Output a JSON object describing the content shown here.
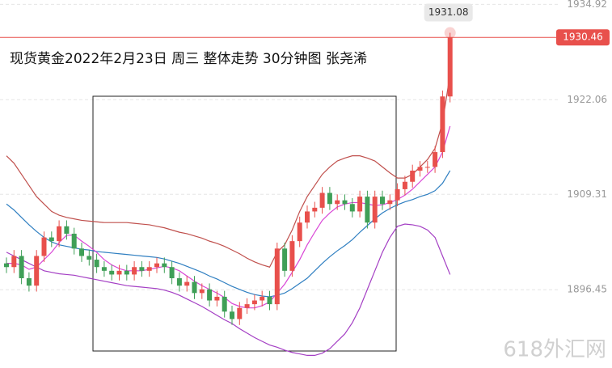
{
  "chart_data": {
    "type": "candlestick",
    "title": "现货黄金2022年2月23日  周三  整体走势  30分钟图  张尧浠",
    "watermark": "618外汇网",
    "ylim": [
      1885.9,
      1935.5
    ],
    "yticks": [
      1896.45,
      1909.31,
      1922.06,
      1934.92
    ],
    "grid": true,
    "up_color": "#e8504c",
    "down_color": "#3f9f57",
    "open": [
      1900,
      1899.5,
      1901,
      1898,
      1897,
      1901,
      1903.5,
      1903,
      1905,
      1904,
      1902,
      1901,
      1900.5,
      1899.5,
      1899,
      1898.5,
      1899,
      1898.5,
      1899.5,
      1899,
      1899.5,
      1900,
      1899.5,
      1898,
      1897,
      1897.5,
      1896,
      1896.5,
      1895,
      1895.5,
      1893.5,
      1892.5,
      1894,
      1894.5,
      1895,
      1895.5,
      1894.5,
      1902,
      1899,
      1903,
      1905.5,
      1907,
      1907.5,
      1909.5,
      1908,
      1908.5,
      1908,
      1907,
      1909,
      1905.5,
      1909,
      1908,
      1908.5,
      1910,
      1911,
      1912.5,
      1913,
      1913,
      1915,
      1922.5
    ],
    "high": [
      1900.8,
      1901.8,
      1901.8,
      1898.8,
      1901.8,
      1904.3,
      1904.3,
      1905.8,
      1905.8,
      1904.8,
      1902.8,
      1901.8,
      1901.3,
      1900.3,
      1899.8,
      1899.8,
      1899.8,
      1900.3,
      1900.3,
      1900.3,
      1900.8,
      1900.8,
      1900.3,
      1898.8,
      1898.3,
      1898.3,
      1897.3,
      1897.3,
      1896.3,
      1896.3,
      1894.3,
      1894.8,
      1895.3,
      1895.8,
      1896.3,
      1896.3,
      1902.8,
      1902.8,
      1903.8,
      1906.3,
      1907.8,
      1908.3,
      1910.3,
      1910.3,
      1909.3,
      1909.3,
      1908.8,
      1909.8,
      1909.8,
      1909.8,
      1909.8,
      1909.3,
      1910.8,
      1911.8,
      1913.3,
      1913.8,
      1913.8,
      1915.8,
      1923.3,
      1931.08
    ],
    "low": [
      1898.7,
      1898.7,
      1897.2,
      1896.2,
      1896.2,
      1900.2,
      1902.2,
      1902.2,
      1903.2,
      1901.2,
      1900.2,
      1899.7,
      1898.7,
      1898.2,
      1897.7,
      1897.7,
      1897.7,
      1897.7,
      1898.2,
      1898.2,
      1898.7,
      1898.7,
      1897.2,
      1896.2,
      1896.2,
      1895.2,
      1895.2,
      1894.2,
      1894.2,
      1892.7,
      1891.7,
      1891.7,
      1893.2,
      1893.7,
      1894.2,
      1893.7,
      1893.7,
      1898.2,
      1898.2,
      1902.2,
      1904.7,
      1906.2,
      1906.7,
      1907.2,
      1907.2,
      1907.2,
      1906.2,
      1906.2,
      1904.7,
      1904.7,
      1907.2,
      1907.2,
      1907.7,
      1909.2,
      1910.2,
      1911.7,
      1912.2,
      1912.2,
      1914.2,
      1921.7
    ],
    "close": [
      1899.5,
      1901,
      1898,
      1897,
      1901,
      1903.5,
      1903,
      1905,
      1904,
      1902,
      1901,
      1900.5,
      1899.5,
      1899,
      1898.5,
      1899,
      1898.5,
      1899.5,
      1899,
      1899.5,
      1900,
      1899.5,
      1898,
      1897,
      1897.5,
      1896,
      1896.5,
      1895,
      1895.5,
      1893.5,
      1892.5,
      1894,
      1894.5,
      1895,
      1895.5,
      1894.5,
      1902,
      1899,
      1903,
      1905.5,
      1907,
      1907.5,
      1909.5,
      1908,
      1908.5,
      1908,
      1907,
      1909,
      1905.5,
      1909,
      1908,
      1908.5,
      1910,
      1911,
      1912.5,
      1913,
      1913,
      1915,
      1922.5,
      1930.46
    ],
    "lines": [
      {
        "color": "#c0504d",
        "values": [
          1914.5,
          1913.5,
          1912,
          1910.5,
          1909,
          1908,
          1907,
          1906.5,
          1906.2,
          1906,
          1905.8,
          1905.7,
          1905.6,
          1905.5,
          1905.5,
          1905.5,
          1905.5,
          1905.4,
          1905.3,
          1905.2,
          1905,
          1904.8,
          1904.5,
          1904.2,
          1904,
          1903.7,
          1903.4,
          1903,
          1902.7,
          1902.3,
          1901.8,
          1901.3,
          1900.7,
          1900.2,
          1899.8,
          1899.5,
          1901.5,
          1902.5,
          1904.5,
          1907,
          1909,
          1910.5,
          1912,
          1913,
          1913.8,
          1914.2,
          1914.5,
          1914.5,
          1914.2,
          1913.8,
          1913,
          1912.2,
          1911.5,
          1911.5,
          1912,
          1913,
          1914,
          1915.5,
          1919,
          1925.5
        ]
      },
      {
        "color": "#a43fc4",
        "values": [
          1901.5,
          1901,
          1900.5,
          1900,
          1899.5,
          1899,
          1898.8,
          1898.6,
          1898.5,
          1898.4,
          1898.2,
          1898,
          1897.8,
          1897.6,
          1897.4,
          1897.2,
          1897,
          1896.9,
          1896.8,
          1896.7,
          1896.6,
          1896.4,
          1896.1,
          1895.7,
          1895.2,
          1894.7,
          1894.2,
          1893.6,
          1893,
          1892.4,
          1891.9,
          1891.2,
          1890.6,
          1890,
          1889.5,
          1889,
          1888.7,
          1888.3,
          1888,
          1887.8,
          1887.6,
          1887.6,
          1887.9,
          1888.5,
          1889.5,
          1890.5,
          1892,
          1894,
          1896.5,
          1899,
          1901.5,
          1903.5,
          1905,
          1905.3,
          1905.2,
          1905,
          1904.5,
          1903.5,
          1901,
          1898.5
        ]
      },
      {
        "color": "#2f7fc1",
        "values": [
          1908,
          1907.2,
          1906.2,
          1905.2,
          1904.3,
          1903.5,
          1902.9,
          1902.5,
          1902.3,
          1902.1,
          1901.9,
          1901.8,
          1901.6,
          1901.5,
          1901.4,
          1901.3,
          1901.2,
          1901.1,
          1901,
          1900.9,
          1900.8,
          1900.6,
          1900.3,
          1900,
          1899.6,
          1899.2,
          1898.8,
          1898.3,
          1897.9,
          1897.4,
          1896.9,
          1896.5,
          1896.1,
          1895.8,
          1895.6,
          1895.5,
          1895.7,
          1896,
          1896.6,
          1897.3,
          1898,
          1899,
          1900,
          1900.9,
          1901.7,
          1902.4,
          1903.2,
          1904.2,
          1905.1,
          1906,
          1906.8,
          1907.4,
          1907.9,
          1908.3,
          1908.6,
          1909,
          1909.3,
          1909.8,
          1910.8,
          1912.5
        ]
      },
      {
        "color": "#d946d6",
        "values": [
          1900,
          1900,
          1899.8,
          1899.2,
          1899.5,
          1900.5,
          1901.5,
          1902.8,
          1903.8,
          1903.8,
          1903,
          1902.3,
          1901.5,
          1900.5,
          1899.8,
          1899.3,
          1899,
          1899,
          1899,
          1899.2,
          1899.4,
          1899.6,
          1899.4,
          1899,
          1898.3,
          1897.6,
          1897,
          1896.5,
          1896,
          1895.4,
          1894.6,
          1894.2,
          1894,
          1894,
          1894.3,
          1894.8,
          1896,
          1897.2,
          1898.8,
          1900.5,
          1902.5,
          1904.2,
          1905.8,
          1906.8,
          1907.6,
          1908,
          1908.2,
          1908.2,
          1908,
          1907.8,
          1907.9,
          1908.2,
          1908.6,
          1909.2,
          1910,
          1911,
          1912,
          1913,
          1915,
          1918.5
        ]
      }
    ]
  }
}
